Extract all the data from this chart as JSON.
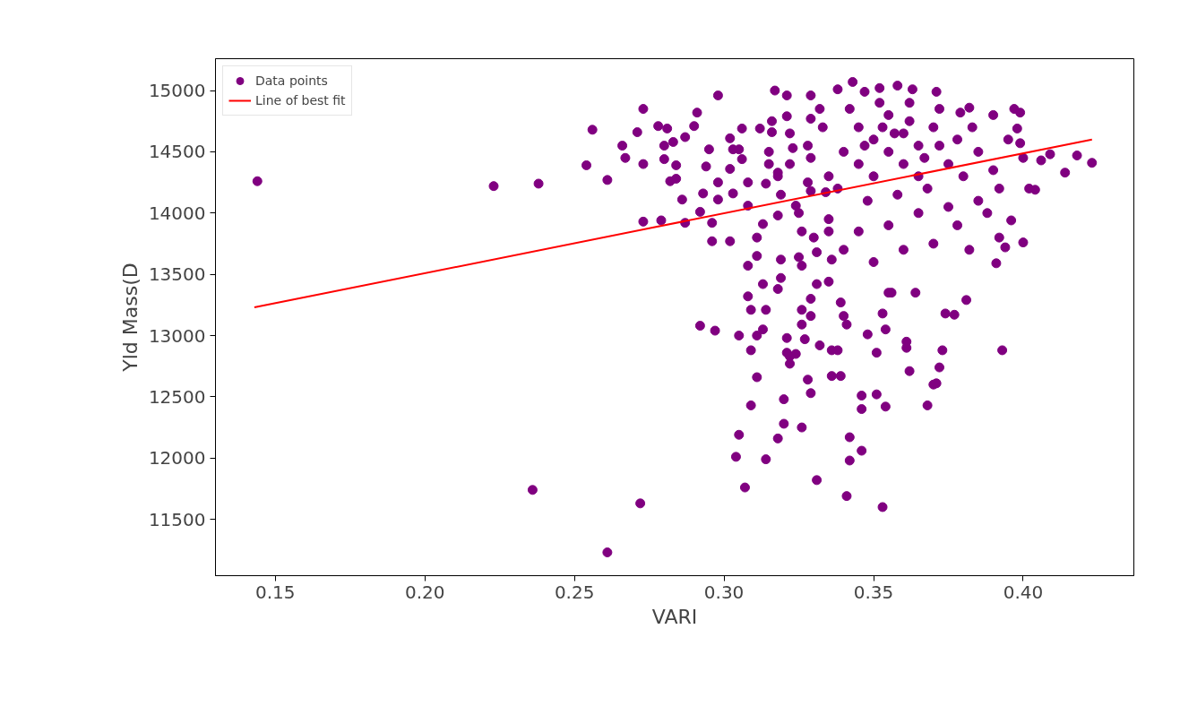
{
  "chart_data": {
    "type": "scatter",
    "xlabel": "VARI",
    "ylabel": "Yld Mass(D",
    "xlim": [
      0.13,
      0.437
    ],
    "ylim": [
      11040,
      15260
    ],
    "xticks": [
      {
        "value": 0.15,
        "label": "0.15"
      },
      {
        "value": 0.2,
        "label": "0.20"
      },
      {
        "value": 0.25,
        "label": "0.25"
      },
      {
        "value": 0.3,
        "label": "0.30"
      },
      {
        "value": 0.35,
        "label": "0.35"
      },
      {
        "value": 0.4,
        "label": "0.40"
      }
    ],
    "yticks": [
      11500,
      12000,
      12500,
      13000,
      13500,
      14000,
      14500,
      15000
    ],
    "grid": false,
    "legend": "top left",
    "series": [
      {
        "name": "Data points",
        "color": "#800080",
        "marker": "circle",
        "x": [
          0.144,
          0.223,
          0.238,
          0.236,
          0.272,
          0.261,
          0.256,
          0.254,
          0.261,
          0.273,
          0.266,
          0.267,
          0.271,
          0.273,
          0.273,
          0.279,
          0.278,
          0.28,
          0.281,
          0.28,
          0.283,
          0.284,
          0.284,
          0.282,
          0.287,
          0.291,
          0.29,
          0.286,
          0.287,
          0.292,
          0.293,
          0.295,
          0.294,
          0.298,
          0.298,
          0.296,
          0.296,
          0.302,
          0.298,
          0.292,
          0.297,
          0.302,
          0.303,
          0.302,
          0.303,
          0.305,
          0.306,
          0.306,
          0.308,
          0.308,
          0.308,
          0.308,
          0.309,
          0.305,
          0.309,
          0.311,
          0.309,
          0.305,
          0.304,
          0.307,
          0.314,
          0.311,
          0.313,
          0.314,
          0.313,
          0.311,
          0.311,
          0.313,
          0.314,
          0.315,
          0.312,
          0.316,
          0.316,
          0.318,
          0.318,
          0.319,
          0.319,
          0.319,
          0.318,
          0.317,
          0.321,
          0.32,
          0.32,
          0.318,
          0.321,
          0.321,
          0.322,
          0.321,
          0.323,
          0.324,
          0.326,
          0.325,
          0.326,
          0.326,
          0.326,
          0.327,
          0.326,
          0.324,
          0.322,
          0.329,
          0.329,
          0.329,
          0.329,
          0.329,
          0.329,
          0.328,
          0.329,
          0.331,
          0.331,
          0.331,
          0.332,
          0.334,
          0.335,
          0.336,
          0.335,
          0.336,
          0.336,
          0.339,
          0.338,
          0.339,
          0.34,
          0.341,
          0.342,
          0.341,
          0.342,
          0.346,
          0.346,
          0.346,
          0.348,
          0.351,
          0.351,
          0.353,
          0.354,
          0.353,
          0.354,
          0.355,
          0.356,
          0.361,
          0.361,
          0.362,
          0.364,
          0.37,
          0.371,
          0.368,
          0.372,
          0.373,
          0.374,
          0.377,
          0.381,
          0.393,
          0.391,
          0.394,
          0.4,
          0.396,
          0.402,
          0.404,
          0.406,
          0.409,
          0.414,
          0.418,
          0.423,
          0.399,
          0.397,
          0.398,
          0.399,
          0.39,
          0.382,
          0.379,
          0.371,
          0.363,
          0.358,
          0.352,
          0.347,
          0.343,
          0.338,
          0.345,
          0.35,
          0.355,
          0.36,
          0.365,
          0.37,
          0.355,
          0.36,
          0.365,
          0.35,
          0.345,
          0.34,
          0.338,
          0.348,
          0.358,
          0.368,
          0.375,
          0.378,
          0.385,
          0.39,
          0.383,
          0.372,
          0.362,
          0.352,
          0.342,
          0.333,
          0.328,
          0.322,
          0.325,
          0.335,
          0.345,
          0.355,
          0.365,
          0.375,
          0.385,
          0.392,
          0.4,
          0.395,
          0.357,
          0.362,
          0.353,
          0.347,
          0.367,
          0.372,
          0.38,
          0.33,
          0.34,
          0.35,
          0.36,
          0.37,
          0.378,
          0.388,
          0.392,
          0.382,
          0.335,
          0.328,
          0.318,
          0.315,
          0.322,
          0.332
        ],
        "values": [
          14260,
          14220,
          14240,
          11740,
          11630,
          11230,
          14680,
          14390,
          14270,
          14850,
          14550,
          14450,
          14660,
          14400,
          13930,
          13940,
          14710,
          14550,
          14690,
          14440,
          14580,
          14390,
          14280,
          14260,
          14620,
          14820,
          14710,
          14110,
          13920,
          14010,
          14160,
          14520,
          14380,
          14960,
          14250,
          13920,
          13770,
          13770,
          14110,
          13080,
          13040,
          14610,
          14520,
          14360,
          14160,
          14520,
          14690,
          14440,
          14250,
          14060,
          13570,
          13320,
          13210,
          13000,
          12880,
          12660,
          12430,
          12190,
          12010,
          11760,
          11990,
          13000,
          13050,
          13210,
          13420,
          13650,
          13800,
          13910,
          14240,
          14400,
          14690,
          14660,
          14750,
          14330,
          13980,
          14150,
          13620,
          13470,
          13380,
          15000,
          14960,
          12480,
          12280,
          12160,
          12980,
          12860,
          12770,
          14790,
          14530,
          14060,
          13850,
          13640,
          13570,
          13210,
          13090,
          12970,
          12250,
          12850,
          12830,
          14770,
          14960,
          14450,
          14180,
          13300,
          13160,
          12640,
          12530,
          13680,
          13420,
          11820,
          12920,
          14170,
          13850,
          13620,
          13440,
          12880,
          12670,
          12670,
          12880,
          13270,
          13160,
          13090,
          11980,
          11690,
          12170,
          12060,
          12400,
          12510,
          13010,
          12520,
          12860,
          11600,
          12420,
          13180,
          13050,
          13350,
          13350,
          12900,
          12950,
          12710,
          13350,
          12600,
          12610,
          12430,
          12740,
          12880,
          13180,
          13170,
          13290,
          12880,
          13590,
          13720,
          13760,
          13940,
          14200,
          14190,
          14430,
          14480,
          14330,
          14470,
          14410,
          14820,
          14850,
          14690,
          14570,
          14800,
          14860,
          14820,
          14990,
          15010,
          15040,
          15020,
          14990,
          15070,
          15010,
          14700,
          14600,
          14500,
          14650,
          14550,
          14700,
          14800,
          14400,
          14300,
          14300,
          14400,
          14500,
          14200,
          14100,
          14150,
          14200,
          14400,
          14600,
          14500,
          14350,
          14700,
          14850,
          14900,
          14900,
          14850,
          14700,
          14550,
          14400,
          14000,
          13950,
          13850,
          13900,
          14000,
          14050,
          14100,
          14200,
          14450,
          14600,
          14650,
          14750,
          14700,
          14550,
          14450,
          14550,
          14300,
          13800,
          13700,
          13600,
          13700,
          13750,
          13900,
          14000,
          13800,
          13700,
          14300,
          14250,
          14300,
          14500,
          14650,
          14850
        ]
      },
      {
        "name": "Line of best fit",
        "type": "line",
        "color": "#ff0000",
        "line_style": "solid",
        "marker": "none",
        "x": [
          0.143,
          0.423
        ],
        "values": [
          13230,
          14600
        ]
      }
    ]
  }
}
